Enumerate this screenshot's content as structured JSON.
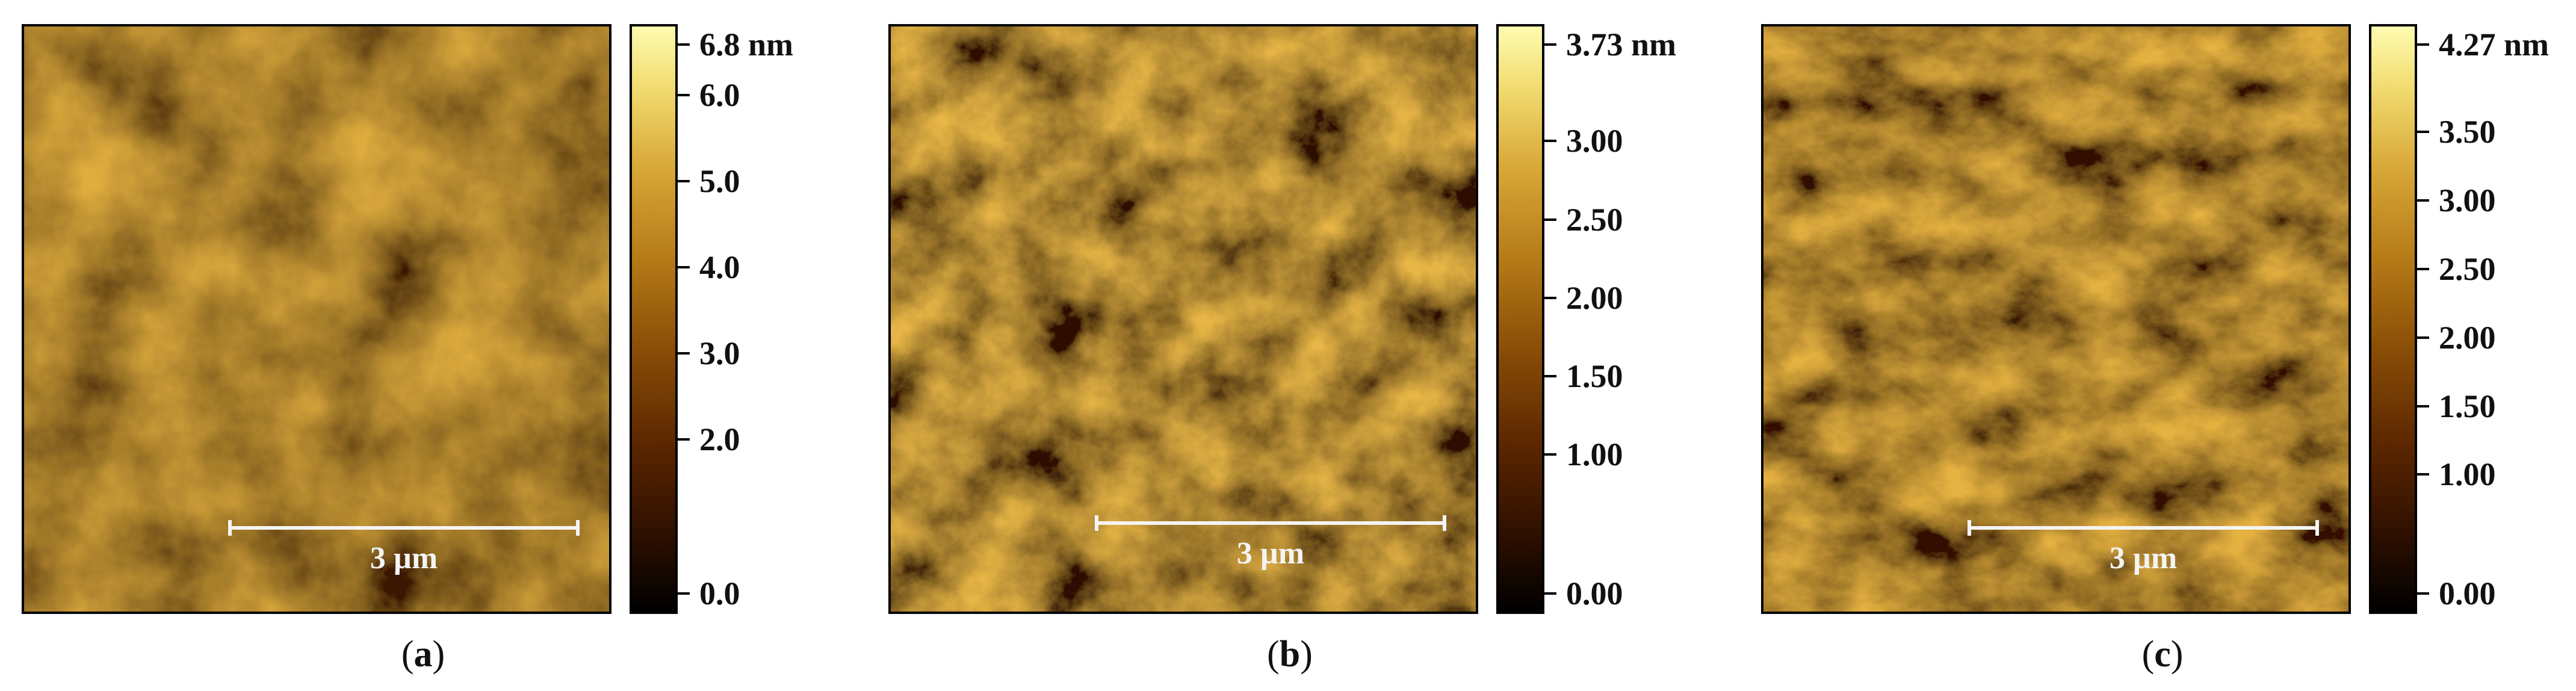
{
  "panels": [
    {
      "caption_open": "(",
      "caption_letter": "a",
      "caption_close": ")",
      "scale_bar_label": "3 µm",
      "colorbar_ticks": [
        {
          "label": "6.8 nm",
          "value": 6.8
        },
        {
          "label": "6.0",
          "value": 6.0
        },
        {
          "label": "5.0",
          "value": 5.0
        },
        {
          "label": "4.0",
          "value": 4.0
        },
        {
          "label": "3.0",
          "value": 3.0
        },
        {
          "label": "2.0",
          "value": 2.0
        },
        {
          "label": "0.0",
          "value": 0.0
        }
      ],
      "colorbar_max": 6.8
    },
    {
      "caption_open": "(",
      "caption_letter": "b",
      "caption_close": ")",
      "scale_bar_label": "3 µm",
      "colorbar_ticks": [
        {
          "label": "3.73 nm",
          "value": 3.73
        },
        {
          "label": "3.00",
          "value": 3.0
        },
        {
          "label": "2.50",
          "value": 2.5
        },
        {
          "label": "2.00",
          "value": 2.0
        },
        {
          "label": "1.50",
          "value": 1.5
        },
        {
          "label": "1.00",
          "value": 1.0
        },
        {
          "label": "0.00",
          "value": 0.0
        }
      ],
      "colorbar_max": 3.73
    },
    {
      "caption_open": "(",
      "caption_letter": "c",
      "caption_close": ")",
      "scale_bar_label": "3 µm",
      "colorbar_ticks": [
        {
          "label": "4.27 nm",
          "value": 4.27
        },
        {
          "label": "3.50",
          "value": 3.5
        },
        {
          "label": "3.00",
          "value": 3.0
        },
        {
          "label": "2.50",
          "value": 2.5
        },
        {
          "label": "2.00",
          "value": 2.0
        },
        {
          "label": "1.50",
          "value": 1.5
        },
        {
          "label": "1.00",
          "value": 1.0
        },
        {
          "label": "0.00",
          "value": 0.0
        }
      ],
      "colorbar_max": 4.27
    }
  ],
  "colors": {
    "afm_dark": "#2a0e00",
    "afm_mid": "#9a5a0c",
    "afm_light": "#e3b64a",
    "scale_bar": "#f4f4f4"
  }
}
